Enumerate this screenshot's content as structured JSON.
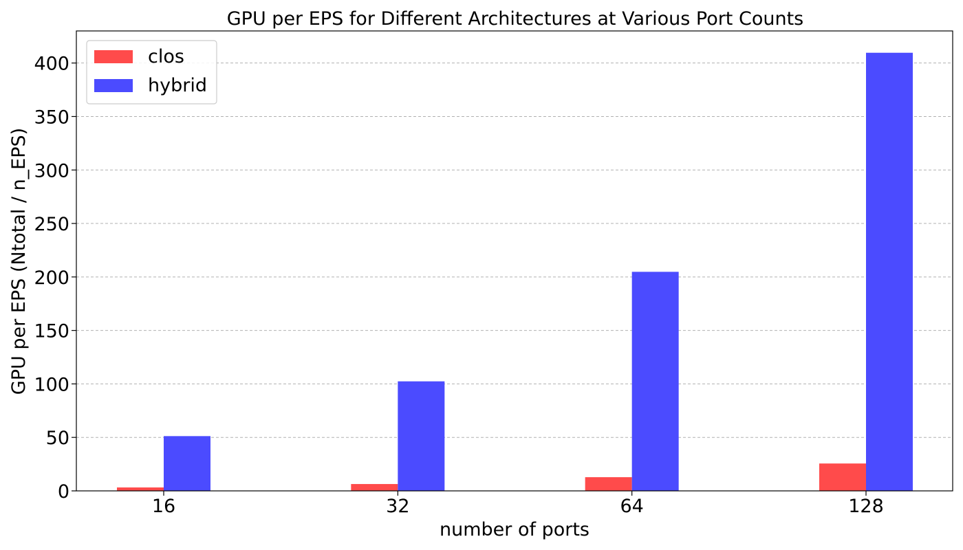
{
  "chart_data": {
    "type": "bar",
    "title": "GPU per EPS for Different Architectures at Various Port Counts",
    "xlabel": "number of ports",
    "ylabel": "GPU per EPS (Ntotal / n_EPS)",
    "categories": [
      "16",
      "32",
      "64",
      "128"
    ],
    "series": [
      {
        "name": "clos",
        "color": "#ff4b4b",
        "values": [
          3.2,
          6.4,
          12.8,
          25.6
        ]
      },
      {
        "name": "hybrid",
        "color": "#4b4bff",
        "values": [
          51.2,
          102.4,
          204.8,
          409.6
        ]
      }
    ],
    "ylim": [
      0,
      430
    ],
    "yticks": [
      0,
      50,
      100,
      150,
      200,
      250,
      300,
      350,
      400
    ],
    "grid": "y-dashed",
    "legend": "top-left"
  }
}
